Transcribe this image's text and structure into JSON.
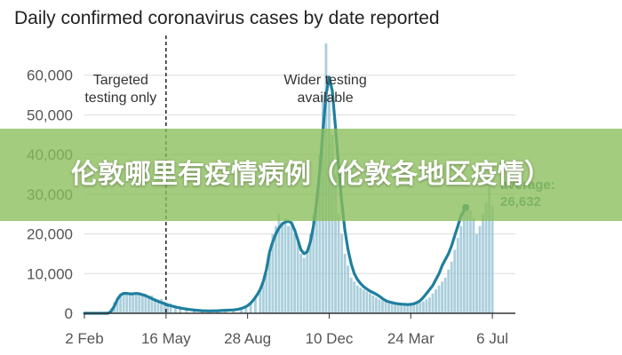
{
  "chart_data": {
    "type": "bar",
    "title": "Daily confirmed coronavirus cases by date reported",
    "y_ticks": [
      "0",
      "10,000",
      "20,000",
      "30,000",
      "40,000",
      "50,000",
      "60,000"
    ],
    "ylim": [
      0,
      70000
    ],
    "x_ticks": [
      "2 Feb",
      "16 May",
      "28 Aug",
      "10 Dec",
      "24 Mar",
      "6 Jul"
    ],
    "x_tick_days": [
      0,
      104,
      208,
      312,
      416,
      520
    ],
    "xlim": [
      0,
      521
    ],
    "series": [
      {
        "kind": "bar",
        "color": "#8fbfd0",
        "points": [
          [
            30,
            300
          ],
          [
            34,
            1200
          ],
          [
            38,
            2800
          ],
          [
            42,
            4000
          ],
          [
            46,
            4600
          ],
          [
            50,
            5000
          ],
          [
            54,
            4800
          ],
          [
            58,
            5000
          ],
          [
            62,
            4600
          ],
          [
            66,
            4800
          ],
          [
            70,
            5200
          ],
          [
            74,
            4700
          ],
          [
            78,
            4900
          ],
          [
            82,
            4200
          ],
          [
            86,
            4500
          ],
          [
            90,
            3800
          ],
          [
            94,
            3500
          ],
          [
            98,
            3600
          ],
          [
            102,
            3000
          ],
          [
            106,
            2600
          ],
          [
            110,
            2500
          ],
          [
            116,
            2000
          ],
          [
            122,
            1800
          ],
          [
            130,
            1500
          ],
          [
            140,
            1000
          ],
          [
            150,
            800
          ],
          [
            160,
            700
          ],
          [
            170,
            800
          ],
          [
            180,
            900
          ],
          [
            190,
            1000
          ],
          [
            200,
            1200
          ],
          [
            206,
            1400
          ],
          [
            212,
            2500
          ],
          [
            218,
            3800
          ],
          [
            224,
            6000
          ],
          [
            228,
            7500
          ],
          [
            232,
            10000
          ],
          [
            236,
            15000
          ],
          [
            240,
            20000
          ],
          [
            244,
            22000
          ],
          [
            248,
            25000
          ],
          [
            252,
            23000
          ],
          [
            256,
            24000
          ],
          [
            260,
            22000
          ],
          [
            264,
            23000
          ],
          [
            268,
            20000
          ],
          [
            272,
            18000
          ],
          [
            276,
            15000
          ],
          [
            280,
            14000
          ],
          [
            284,
            16000
          ],
          [
            288,
            20000
          ],
          [
            292,
            25000
          ],
          [
            296,
            30000
          ],
          [
            300,
            40000
          ],
          [
            304,
            55000
          ],
          [
            308,
            68000
          ],
          [
            312,
            55000
          ],
          [
            316,
            45000
          ],
          [
            320,
            35000
          ],
          [
            324,
            25000
          ],
          [
            328,
            20000
          ],
          [
            332,
            15000
          ],
          [
            336,
            12000
          ],
          [
            340,
            9000
          ],
          [
            344,
            8000
          ],
          [
            348,
            7000
          ],
          [
            352,
            6500
          ],
          [
            356,
            6000
          ],
          [
            360,
            5500
          ],
          [
            364,
            5000
          ],
          [
            368,
            4500
          ],
          [
            372,
            4000
          ],
          [
            376,
            3500
          ],
          [
            380,
            3200
          ],
          [
            384,
            3000
          ],
          [
            388,
            2800
          ],
          [
            392,
            2600
          ],
          [
            396,
            2500
          ],
          [
            400,
            2400
          ],
          [
            404,
            2300
          ],
          [
            408,
            2200
          ],
          [
            412,
            2100
          ],
          [
            416,
            2200
          ],
          [
            420,
            2300
          ],
          [
            424,
            2500
          ],
          [
            428,
            2700
          ],
          [
            432,
            3000
          ],
          [
            436,
            3500
          ],
          [
            440,
            4000
          ],
          [
            444,
            5000
          ],
          [
            448,
            6000
          ],
          [
            452,
            7000
          ],
          [
            456,
            8000
          ],
          [
            460,
            9000
          ],
          [
            464,
            11000
          ],
          [
            468,
            13000
          ],
          [
            472,
            16000
          ],
          [
            476,
            19000
          ],
          [
            480,
            22000
          ],
          [
            484,
            26000
          ],
          [
            488,
            27500
          ],
          [
            492,
            26000
          ],
          [
            496,
            24000
          ],
          [
            500,
            20000
          ],
          [
            504,
            22000
          ],
          [
            508,
            25000
          ],
          [
            512,
            28000
          ],
          [
            516,
            32000
          ],
          [
            520,
            27000
          ]
        ]
      },
      {
        "kind": "line",
        "color": "#1f7f9f",
        "points": [
          [
            0,
            0
          ],
          [
            30,
            0
          ],
          [
            34,
            500
          ],
          [
            38,
            1800
          ],
          [
            42,
            3500
          ],
          [
            46,
            4600
          ],
          [
            50,
            5000
          ],
          [
            54,
            5000
          ],
          [
            58,
            4900
          ],
          [
            62,
            4900
          ],
          [
            66,
            5000
          ],
          [
            70,
            4900
          ],
          [
            74,
            4700
          ],
          [
            78,
            4400
          ],
          [
            82,
            4100
          ],
          [
            86,
            3700
          ],
          [
            90,
            3300
          ],
          [
            94,
            3000
          ],
          [
            98,
            2700
          ],
          [
            102,
            2400
          ],
          [
            106,
            2100
          ],
          [
            110,
            1900
          ],
          [
            114,
            1700
          ],
          [
            118,
            1500
          ],
          [
            124,
            1250
          ],
          [
            130,
            1050
          ],
          [
            140,
            800
          ],
          [
            150,
            650
          ],
          [
            160,
            600
          ],
          [
            170,
            650
          ],
          [
            180,
            750
          ],
          [
            190,
            850
          ],
          [
            196,
            1000
          ],
          [
            200,
            1200
          ],
          [
            204,
            1500
          ],
          [
            208,
            1900
          ],
          [
            212,
            2600
          ],
          [
            216,
            3500
          ],
          [
            220,
            4600
          ],
          [
            224,
            6000
          ],
          [
            228,
            8000
          ],
          [
            232,
            11000
          ],
          [
            236,
            15500
          ],
          [
            240,
            18000
          ],
          [
            244,
            20000
          ],
          [
            248,
            21500
          ],
          [
            252,
            22500
          ],
          [
            256,
            23000
          ],
          [
            260,
            23200
          ],
          [
            264,
            22800
          ],
          [
            268,
            21000
          ],
          [
            272,
            18500
          ],
          [
            276,
            16000
          ],
          [
            280,
            15000
          ],
          [
            284,
            15500
          ],
          [
            288,
            18000
          ],
          [
            292,
            22000
          ],
          [
            296,
            28000
          ],
          [
            300,
            36000
          ],
          [
            304,
            46000
          ],
          [
            308,
            55000
          ],
          [
            312,
            59500
          ],
          [
            316,
            56000
          ],
          [
            320,
            47000
          ],
          [
            324,
            37000
          ],
          [
            328,
            28000
          ],
          [
            332,
            21000
          ],
          [
            336,
            16000
          ],
          [
            340,
            12500
          ],
          [
            344,
            10000
          ],
          [
            348,
            8500
          ],
          [
            352,
            7500
          ],
          [
            356,
            6700
          ],
          [
            360,
            6100
          ],
          [
            364,
            5600
          ],
          [
            368,
            5200
          ],
          [
            372,
            4800
          ],
          [
            376,
            4300
          ],
          [
            380,
            3700
          ],
          [
            384,
            3200
          ],
          [
            388,
            2900
          ],
          [
            392,
            2700
          ],
          [
            396,
            2500
          ],
          [
            400,
            2400
          ],
          [
            404,
            2300
          ],
          [
            408,
            2250
          ],
          [
            412,
            2200
          ],
          [
            416,
            2250
          ],
          [
            420,
            2400
          ],
          [
            424,
            2700
          ],
          [
            428,
            3200
          ],
          [
            432,
            4000
          ],
          [
            436,
            5000
          ],
          [
            440,
            6000
          ],
          [
            444,
            7000
          ],
          [
            448,
            8500
          ],
          [
            452,
            10000
          ],
          [
            456,
            12000
          ],
          [
            460,
            13500
          ],
          [
            464,
            15000
          ],
          [
            468,
            17000
          ],
          [
            472,
            19500
          ],
          [
            476,
            22000
          ],
          [
            480,
            24500
          ],
          [
            484,
            26000
          ],
          [
            486,
            26632
          ]
        ]
      }
    ],
    "annotations": [
      {
        "day": 104,
        "lines": [
          "Targeted",
          "testing only"
        ]
      },
      {
        "day": 307,
        "lines": [
          "Wider testing",
          "available"
        ]
      }
    ],
    "callout": {
      "day": 486,
      "value": 26632,
      "lines": [
        "average:",
        "26,632"
      ]
    }
  },
  "overlay": {
    "banner_text": "伦敦哪里有疫情病例（伦敦各地区疫情）"
  }
}
